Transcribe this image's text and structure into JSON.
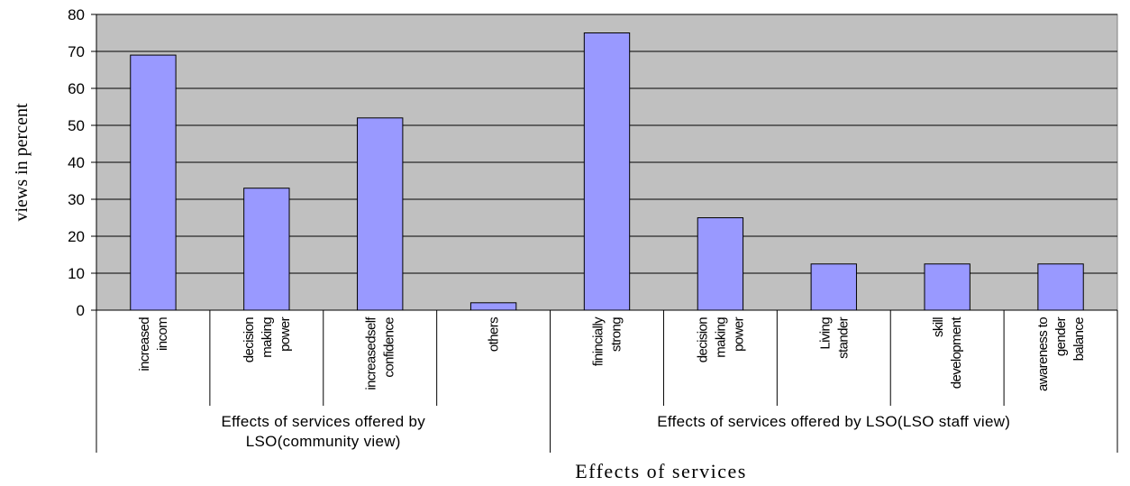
{
  "chart_data": {
    "type": "bar",
    "ylabel": "views in percent",
    "xlabel": "Effects of services",
    "ylim": [
      0,
      80
    ],
    "yticks": [
      0,
      10,
      20,
      30,
      40,
      50,
      60,
      70,
      80
    ],
    "grid": true,
    "legend": "none",
    "colors": {
      "bar": "#9999ff",
      "plot_bg": "#c0c0c0",
      "grid": "#000000"
    },
    "groups": [
      {
        "label_lines": [
          "Effects of services offered by",
          "LSO(community view)"
        ],
        "categories": [
          {
            "lines": [
              "increased",
              "incom"
            ],
            "value": 69
          },
          {
            "lines": [
              "decision",
              "making",
              "power"
            ],
            "value": 33
          },
          {
            "lines": [
              "increasedself",
              "confidence"
            ],
            "value": 52
          },
          {
            "lines": [
              "others"
            ],
            "value": 2
          }
        ]
      },
      {
        "label_lines": [
          "Effects of services offered by  LSO(LSO staff view)"
        ],
        "categories": [
          {
            "lines": [
              "finincially",
              "strong"
            ],
            "value": 75
          },
          {
            "lines": [
              "decision",
              "making",
              "power"
            ],
            "value": 25
          },
          {
            "lines": [
              "Living",
              "stander"
            ],
            "value": 12.5
          },
          {
            "lines": [
              "skill",
              "development"
            ],
            "value": 12.5
          },
          {
            "lines": [
              "awareness to",
              "gender",
              "balance"
            ],
            "value": 12.5
          }
        ]
      }
    ]
  }
}
